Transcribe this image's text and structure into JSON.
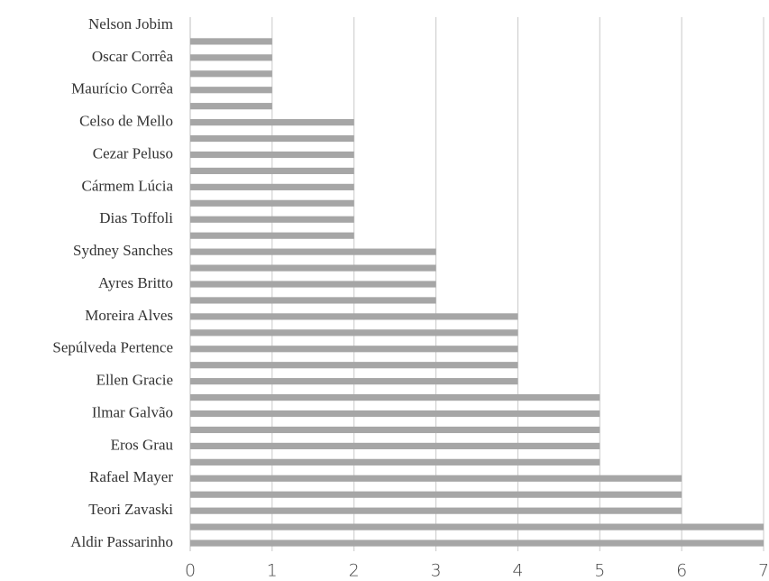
{
  "chart_data": {
    "type": "bar",
    "orientation": "horizontal",
    "categories": [
      "Nelson Jobim",
      null,
      "Oscar Corrêa",
      null,
      "Maurício Corrêa",
      null,
      "Celso de Mello",
      null,
      "Cezar Peluso",
      null,
      "Cármem Lúcia",
      null,
      "Dias Toffoli",
      null,
      "Sydney Sanches",
      null,
      "Ayres Britto",
      null,
      "Moreira Alves",
      null,
      "Sepúlveda Pertence",
      null,
      "Ellen Gracie",
      null,
      "Ilmar Galvão",
      null,
      "Eros Grau",
      null,
      "Rafael Mayer",
      null,
      "Teori Zavaski",
      null,
      "Aldir Passarinho"
    ],
    "values": [
      0,
      1,
      1,
      1,
      1,
      1,
      2,
      2,
      2,
      2,
      2,
      2,
      2,
      2,
      3,
      3,
      3,
      3,
      4,
      4,
      4,
      4,
      4,
      5,
      5,
      5,
      5,
      5,
      6,
      6,
      6,
      7,
      7
    ],
    "color": "#a6a6a6",
    "xlim": [
      0,
      7
    ],
    "xticks": [
      0,
      1,
      2,
      3,
      4,
      5,
      6,
      7
    ],
    "grid": true
  }
}
